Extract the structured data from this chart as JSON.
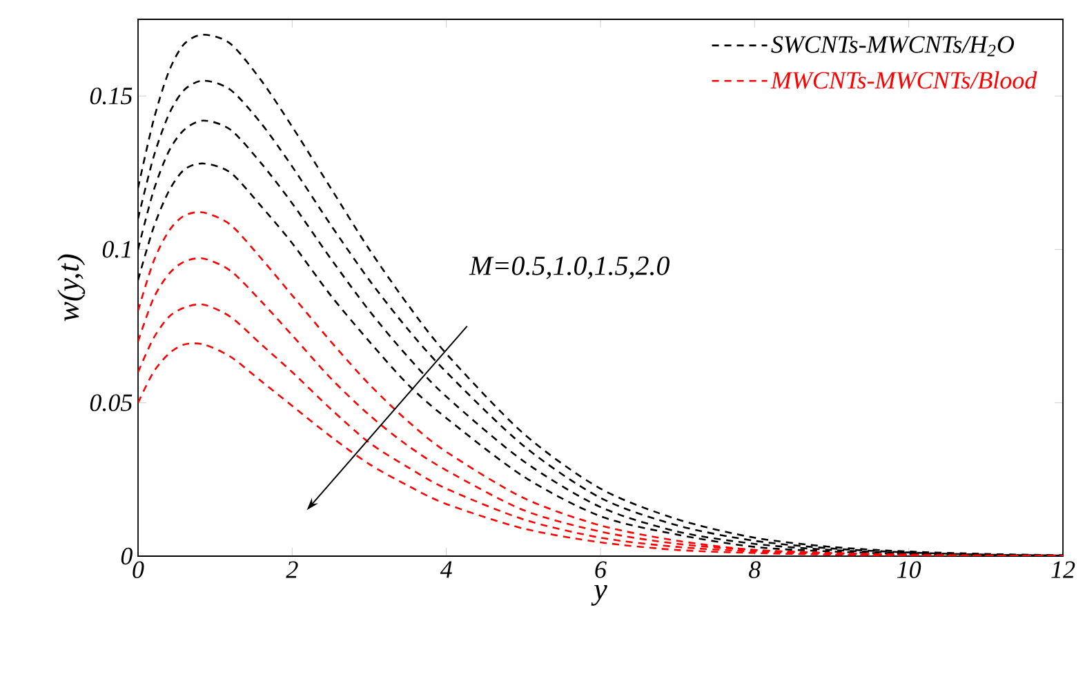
{
  "chart_data": {
    "type": "line",
    "xlabel": "y",
    "ylabel": "w(y,t)",
    "x": [
      0,
      0.2,
      0.4,
      0.6,
      0.85,
      1.2,
      1.6,
      2,
      2.5,
      3,
      3.5,
      4,
      5,
      6,
      7,
      8,
      9,
      10,
      11,
      12
    ],
    "series": [
      {
        "name": "SWCNTs-MWCNTs/H$_{2}$O",
        "color": "#000000",
        "values": [
          0.12,
          0.142,
          0.158,
          0.167,
          0.17,
          0.167,
          0.155,
          0.14,
          0.12,
          0.1,
          0.082,
          0.066,
          0.04,
          0.022,
          0.012,
          0.006,
          0.003,
          0.0015,
          0.0007,
          0.0003
        ]
      },
      {
        "color": "#000000",
        "values": [
          0.11,
          0.13,
          0.144,
          0.152,
          0.155,
          0.152,
          0.141,
          0.127,
          0.108,
          0.09,
          0.074,
          0.06,
          0.036,
          0.019,
          0.01,
          0.005,
          0.0025,
          0.0012,
          0.0005,
          0.0002
        ]
      },
      {
        "color": "#000000",
        "values": [
          0.1,
          0.119,
          0.132,
          0.139,
          0.142,
          0.139,
          0.128,
          0.115,
          0.097,
          0.08,
          0.065,
          0.052,
          0.031,
          0.016,
          0.008,
          0.004,
          0.002,
          0.001,
          0.0004,
          0.0002
        ]
      },
      {
        "color": "#000000",
        "values": [
          0.09,
          0.107,
          0.119,
          0.126,
          0.128,
          0.125,
          0.114,
          0.102,
          0.085,
          0.07,
          0.056,
          0.045,
          0.026,
          0.013,
          0.007,
          0.003,
          0.0015,
          0.0007,
          0.0003,
          0.0001
        ]
      },
      {
        "name": "MWCNTs-MWCNTs/Blood",
        "color": "#ff0000",
        "values": [
          0.08,
          0.096,
          0.106,
          0.111,
          0.112,
          0.108,
          0.097,
          0.085,
          0.07,
          0.056,
          0.044,
          0.034,
          0.019,
          0.01,
          0.005,
          0.002,
          0.001,
          0.0005,
          0.0002,
          0.0001
        ]
      },
      {
        "color": "#ff0000",
        "values": [
          0.07,
          0.084,
          0.092,
          0.096,
          0.097,
          0.093,
          0.083,
          0.072,
          0.058,
          0.046,
          0.036,
          0.028,
          0.015,
          0.008,
          0.004,
          0.002,
          0.001,
          0.0004,
          0.0002,
          0.0001
        ]
      },
      {
        "color": "#ff0000",
        "values": [
          0.06,
          0.071,
          0.078,
          0.081,
          0.082,
          0.078,
          0.069,
          0.06,
          0.048,
          0.037,
          0.029,
          0.022,
          0.012,
          0.006,
          0.003,
          0.0015,
          0.0007,
          0.0003,
          0.0001,
          0
        ]
      },
      {
        "color": "#ff0000",
        "values": [
          0.05,
          0.06,
          0.066,
          0.069,
          0.069,
          0.065,
          0.057,
          0.049,
          0.039,
          0.03,
          0.023,
          0.017,
          0.009,
          0.0045,
          0.002,
          0.001,
          0.0005,
          0.0002,
          0.0001,
          0
        ]
      }
    ],
    "xlim": [
      0,
      12
    ],
    "ylim": [
      0,
      0.175
    ],
    "xticks": [
      0,
      2,
      4,
      6,
      8,
      10,
      12
    ],
    "yticks": [
      0,
      0.05,
      0.1,
      0.15
    ],
    "line_style": "dashed",
    "legend": "top right",
    "grid": false,
    "annotations": [
      "M=0.5,1.0,1.5,2.0"
    ]
  }
}
